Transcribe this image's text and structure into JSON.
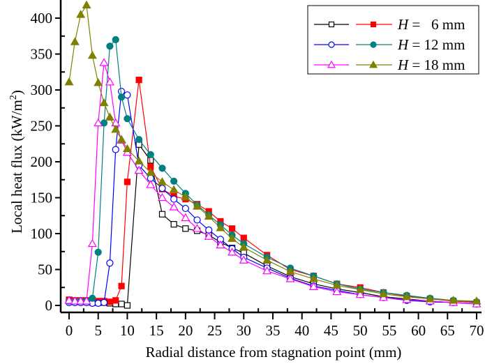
{
  "chart_data": {
    "type": "line",
    "title": "",
    "xlabel": "Radial distance from stagnation point (mm)",
    "ylabel": "Local heat flux (kW/m²)",
    "ylabel_base": "Local heat flux (kW/m",
    "ylabel_sup": "2",
    "ylabel_close": ")",
    "xlim": [
      -1.5,
      71
    ],
    "ylim": [
      -10,
      420
    ],
    "xticks": [
      0,
      5,
      10,
      15,
      20,
      25,
      30,
      35,
      40,
      45,
      50,
      55,
      60,
      65,
      70
    ],
    "yticks": [
      0,
      50,
      100,
      150,
      200,
      250,
      300,
      350,
      400
    ],
    "grid": false,
    "legend_position": "upper right",
    "legend_rows": [
      {
        "label_prefix": "H",
        "label_rest": " =   6 mm",
        "series": [
          0,
          1
        ]
      },
      {
        "label_prefix": "H",
        "label_rest": " = 12 mm",
        "series": [
          2,
          3
        ]
      },
      {
        "label_prefix": "H",
        "label_rest": " = 18 mm",
        "series": [
          4,
          5
        ]
      }
    ],
    "series": [
      {
        "name": "H = 6 mm (open square)",
        "color": "#000000",
        "marker": "square",
        "filled": false,
        "x": [
          0,
          1,
          2,
          3,
          4,
          5,
          6,
          7,
          8,
          9,
          10,
          12,
          14,
          16,
          18,
          20,
          22,
          24,
          26,
          28,
          30,
          34,
          38,
          42,
          46,
          50,
          54,
          58,
          62,
          66,
          70
        ],
        "y": [
          6,
          5,
          5,
          5,
          4,
          4,
          4,
          3,
          2,
          2,
          0,
          224,
          202,
          127,
          113,
          107,
          104,
          98,
          88,
          80,
          73,
          55,
          40,
          30,
          23,
          18,
          12,
          9,
          6,
          4,
          2
        ]
      },
      {
        "name": "H = 6 mm (filled square)",
        "color": "#ff0000",
        "marker": "square",
        "filled": true,
        "x": [
          0,
          1,
          2,
          3,
          4,
          5,
          6,
          7,
          8,
          9,
          10,
          12,
          14,
          16,
          18,
          20,
          22,
          24,
          26,
          28,
          30,
          34,
          38,
          42,
          46,
          50,
          54,
          58,
          62,
          66,
          70
        ],
        "y": [
          8,
          7,
          7,
          7,
          6,
          6,
          6,
          5,
          7,
          27,
          172,
          314,
          193,
          162,
          152,
          148,
          141,
          131,
          117,
          107,
          94,
          70,
          50,
          41,
          30,
          25,
          18,
          13,
          9,
          6,
          4
        ]
      },
      {
        "name": "H = 12 mm (open circle)",
        "color": "#0000ff",
        "marker": "circle",
        "filled": false,
        "x": [
          0,
          1,
          2,
          3,
          4,
          5,
          6,
          7,
          8,
          9,
          10,
          12,
          14,
          16,
          18,
          20,
          22,
          24,
          26,
          28,
          30,
          34,
          38,
          42,
          46,
          50,
          54,
          58,
          62,
          66,
          70
        ],
        "y": [
          4,
          4,
          4,
          4,
          3,
          3,
          4,
          59,
          217,
          298,
          293,
          195,
          177,
          163,
          148,
          135,
          119,
          105,
          92,
          79,
          67,
          52,
          38,
          27,
          21,
          15,
          11,
          7,
          5,
          4,
          2
        ]
      },
      {
        "name": "H = 12 mm (filled circle)",
        "color": "#008080",
        "marker": "circle",
        "filled": true,
        "x": [
          0,
          1,
          2,
          3,
          4,
          5,
          6,
          7,
          8,
          9,
          10,
          12,
          14,
          16,
          18,
          20,
          22,
          24,
          26,
          28,
          30,
          34,
          38,
          42,
          46,
          50,
          54,
          58,
          62,
          66,
          70
        ],
        "y": [
          6,
          6,
          6,
          6,
          10,
          74,
          254,
          361,
          370,
          290,
          260,
          231,
          210,
          191,
          173,
          156,
          140,
          126,
          112,
          98,
          86,
          67,
          52,
          41,
          30,
          23,
          18,
          14,
          10,
          7,
          5
        ]
      },
      {
        "name": "H = 18 mm (open triangle)",
        "color": "#ff00ff",
        "marker": "triangle",
        "filled": false,
        "x": [
          0,
          1,
          2,
          3,
          4,
          5,
          6,
          7,
          8,
          9,
          10,
          12,
          14,
          16,
          18,
          20,
          22,
          24,
          26,
          28,
          30,
          34,
          38,
          42,
          46,
          50,
          54,
          58,
          62,
          66,
          70
        ],
        "y": [
          7,
          6,
          6,
          6,
          86,
          254,
          338,
          311,
          254,
          230,
          213,
          188,
          168,
          150,
          137,
          122,
          107,
          96,
          84,
          74,
          63,
          48,
          37,
          26,
          19,
          15,
          11,
          8,
          6,
          4,
          2
        ]
      },
      {
        "name": "H = 18 mm (filled triangle)",
        "color": "#808000",
        "marker": "triangle",
        "filled": true,
        "x": [
          0,
          1,
          2,
          3,
          4,
          5,
          6,
          7,
          8,
          9,
          10,
          12,
          14,
          16,
          18,
          20,
          22,
          24,
          26,
          28,
          30,
          34,
          38,
          42,
          46,
          50,
          54,
          58,
          62,
          66,
          70
        ],
        "y": [
          311,
          367,
          405,
          418,
          348,
          310,
          282,
          262,
          245,
          231,
          218,
          201,
          185,
          172,
          161,
          151,
          138,
          124,
          108,
          93,
          81,
          63,
          47,
          37,
          28,
          22,
          16,
          12,
          9,
          7,
          6
        ]
      }
    ]
  }
}
